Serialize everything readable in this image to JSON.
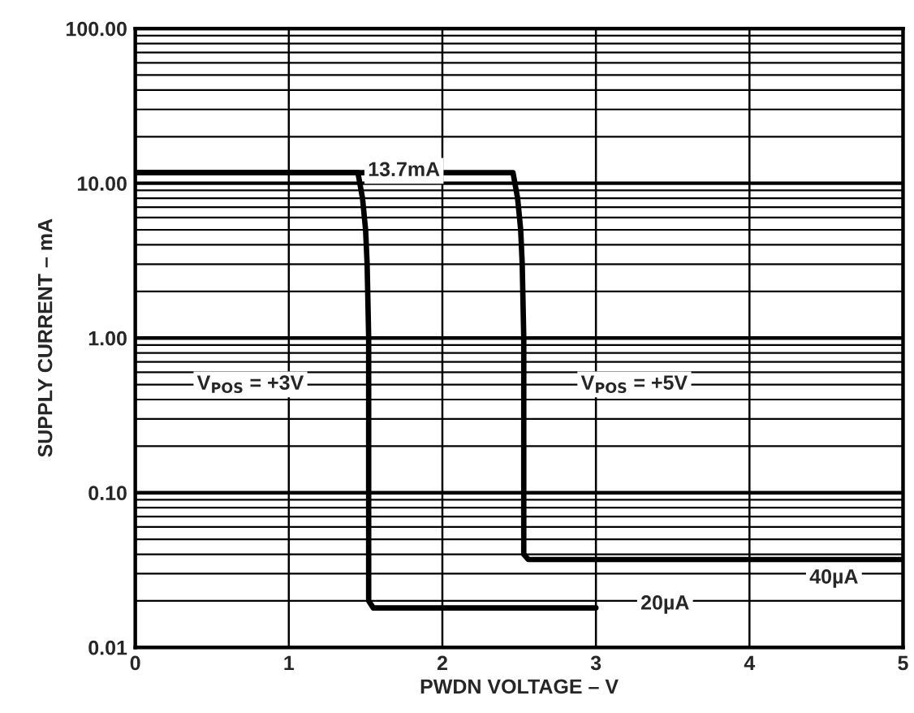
{
  "chart_data": {
    "type": "line",
    "xlabel": "PWDN VOLTAGE – V",
    "ylabel": "SUPPLY CURRENT – mA",
    "log": "y",
    "grid": true,
    "legend": false,
    "marker": "none",
    "line_style": "solid",
    "xlim": [
      0,
      5
    ],
    "xticks": [
      0,
      1,
      2,
      3,
      4,
      5
    ],
    "ylim": [
      0.01,
      100
    ],
    "yticks": [
      {
        "value": 0.01,
        "label": "0.01"
      },
      {
        "value": 0.1,
        "label": "0.10"
      },
      {
        "value": 1,
        "label": "1.00"
      },
      {
        "value": 10,
        "label": "10.00"
      },
      {
        "value": 100,
        "label": "100.00"
      }
    ],
    "series": [
      {
        "color": "#000000",
        "x": [
          0,
          1.45,
          1.48,
          1.5,
          1.51,
          1.52,
          1.52,
          1.55,
          3
        ],
        "values": [
          11.7,
          11.7,
          8,
          5,
          3,
          1,
          0.02,
          0.018,
          0.018
        ]
      },
      {
        "color": "#000000",
        "x": [
          0,
          2.46,
          2.49,
          2.51,
          2.52,
          2.53,
          2.53,
          2.56,
          5
        ],
        "values": [
          11.7,
          11.7,
          8,
          5,
          3,
          1,
          0.04,
          0.037,
          0.037
        ]
      }
    ],
    "annotations": [
      "13.7mA",
      "V$_{POS}$ = +3V",
      "V$_{POS}$ = +5V",
      {
        "text": "20µA",
        "x": 3.45,
        "y": 0.019
      },
      {
        "text": "40µA",
        "x": 4.55,
        "y": 0.028
      }
    ]
  }
}
